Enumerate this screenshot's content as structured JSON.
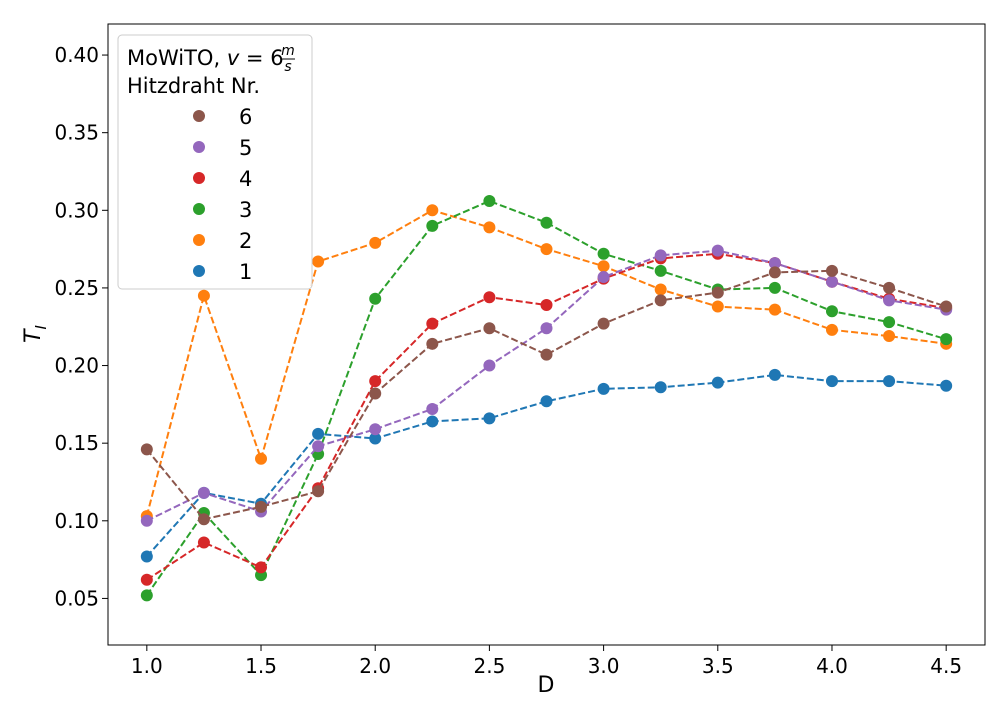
{
  "chart_data": {
    "type": "line",
    "xlabel": "D",
    "ylabel": "T",
    "ylabel_subscript": "I",
    "xlim": [
      0.83,
      4.67
    ],
    "ylim": [
      0.02,
      0.42
    ],
    "x_ticks": [
      1.0,
      1.5,
      2.0,
      2.5,
      3.0,
      3.5,
      4.0,
      4.5
    ],
    "x_tick_labels": [
      "1.0",
      "1.5",
      "2.0",
      "2.5",
      "3.0",
      "3.5",
      "4.0",
      "4.5"
    ],
    "y_ticks": [
      0.05,
      0.1,
      0.15,
      0.2,
      0.25,
      0.3,
      0.35,
      0.4
    ],
    "y_tick_labels": [
      "0.05",
      "0.10",
      "0.15",
      "0.20",
      "0.25",
      "0.30",
      "0.35",
      "0.40"
    ],
    "grid": false,
    "legend": {
      "placement": "top-left",
      "title_prefix": "MoWiTO, ",
      "title_var": "v",
      "title_eq": " = 6",
      "title_frac_num": "m",
      "title_frac_den": "s",
      "subtitle": "Hitzdraht Nr.",
      "order": [
        "6",
        "5",
        "4",
        "3",
        "2",
        "1"
      ]
    },
    "x": [
      1.0,
      1.25,
      1.5,
      1.75,
      2.0,
      2.25,
      2.5,
      2.75,
      3.0,
      3.25,
      3.5,
      3.75,
      4.0,
      4.25,
      4.5
    ],
    "series": [
      {
        "name": "1",
        "color": "#1f77b4",
        "values": [
          0.077,
          0.118,
          0.111,
          0.156,
          0.153,
          0.164,
          0.166,
          0.177,
          0.185,
          0.186,
          0.189,
          0.194,
          0.19,
          0.19,
          0.187
        ]
      },
      {
        "name": "2",
        "color": "#ff7f0e",
        "values": [
          0.103,
          0.245,
          0.14,
          0.267,
          0.279,
          0.3,
          0.289,
          0.275,
          0.264,
          0.249,
          0.238,
          0.236,
          0.223,
          0.219,
          0.214
        ]
      },
      {
        "name": "3",
        "color": "#2ca02c",
        "values": [
          0.052,
          0.105,
          0.065,
          0.143,
          0.243,
          0.29,
          0.306,
          0.292,
          0.272,
          0.261,
          0.249,
          0.25,
          0.235,
          0.228,
          0.217
        ]
      },
      {
        "name": "4",
        "color": "#d62728",
        "values": [
          0.062,
          0.086,
          0.07,
          0.121,
          0.19,
          0.227,
          0.244,
          0.239,
          0.256,
          0.269,
          0.272,
          0.266,
          0.254,
          0.243,
          0.237
        ]
      },
      {
        "name": "5",
        "color": "#9467bd",
        "values": [
          0.1,
          0.118,
          0.106,
          0.148,
          0.159,
          0.172,
          0.2,
          0.224,
          0.257,
          0.271,
          0.274,
          0.266,
          0.254,
          0.242,
          0.236
        ]
      },
      {
        "name": "6",
        "color": "#8c564b",
        "values": [
          0.146,
          0.101,
          0.109,
          0.119,
          0.182,
          0.214,
          0.224,
          0.207,
          0.227,
          0.242,
          0.247,
          0.26,
          0.261,
          0.25,
          0.238
        ]
      }
    ]
  }
}
